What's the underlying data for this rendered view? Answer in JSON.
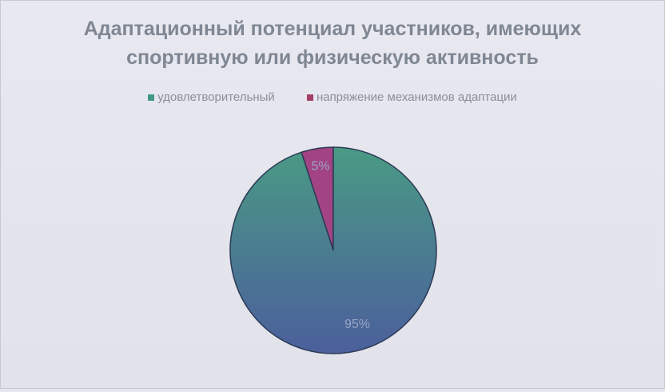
{
  "chart_data": {
    "type": "pie",
    "title": "Адаптационный потенциал участников, имеющих спортивную или физическую активность",
    "title_lines": [
      "Адаптационный потенциал участников, имеющих",
      "спортивную или физическую активность"
    ],
    "legend_position": "top",
    "slices": [
      {
        "label": "удовлетворительный",
        "value": 95,
        "data_label": "95%",
        "color": "#4a9a84",
        "color_end": "#4b5f9c",
        "legend_color": "#3f9a83"
      },
      {
        "label": "напряжение механизмов адаптации",
        "value": 5,
        "data_label": "5%",
        "color": "#a24384",
        "color_end": "#a24384",
        "legend_color": "#a23f62"
      }
    ]
  }
}
